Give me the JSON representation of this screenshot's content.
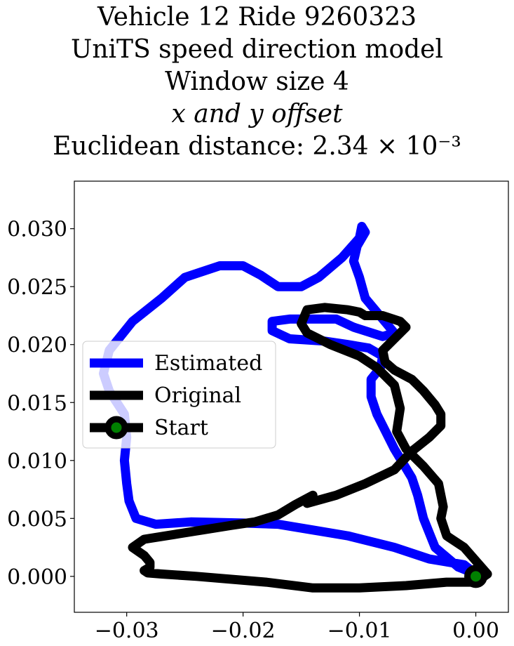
{
  "chart_data": {
    "type": "line",
    "title_lines": [
      "Vehicle 12 Ride 9260323",
      "UniTS speed direction model",
      "Window size 4",
      "x and y offset",
      "Euclidean distance: 2.34 × 10⁻³"
    ],
    "xlim": [
      -0.0345,
      0.0028
    ],
    "ylim": [
      -0.0031,
      0.0341
    ],
    "x_ticks": [
      -0.03,
      -0.02,
      -0.01,
      0.0
    ],
    "x_tick_labels": [
      "−0.03",
      "−0.02",
      "−0.01",
      "0.00"
    ],
    "y_ticks": [
      0.0,
      0.005,
      0.01,
      0.015,
      0.02,
      0.025,
      0.03
    ],
    "y_tick_labels": [
      "0.000",
      "0.005",
      "0.010",
      "0.015",
      "0.020",
      "0.025",
      "0.030"
    ],
    "grid": false,
    "legend_position": "center-left",
    "series": [
      {
        "name": "Estimated",
        "color": "#0000ff",
        "x": [
          0.0,
          -0.0015,
          -0.0035,
          -0.0045,
          -0.005,
          -0.0055,
          -0.007,
          -0.0085,
          -0.009,
          -0.009,
          -0.0082,
          -0.008,
          -0.0092,
          -0.011,
          -0.013,
          -0.016,
          -0.0175,
          -0.0175,
          -0.016,
          -0.014,
          -0.012,
          -0.0105,
          -0.008,
          -0.007,
          -0.008,
          -0.0095,
          -0.01,
          -0.0105,
          -0.0102,
          -0.0095,
          -0.0098,
          -0.01,
          -0.0115,
          -0.0135,
          -0.015,
          -0.017,
          -0.0185,
          -0.02,
          -0.022,
          -0.025,
          -0.027,
          -0.0295,
          -0.0315,
          -0.032,
          -0.0315,
          -0.0302,
          -0.03,
          -0.0302,
          -0.03,
          -0.0298,
          -0.0292,
          -0.0275,
          -0.0245,
          -0.02,
          -0.017,
          -0.014,
          -0.011,
          -0.007,
          -0.004,
          -0.001,
          0.0
        ],
        "y": [
          0.0002,
          0.0008,
          0.0025,
          0.005,
          0.007,
          0.0085,
          0.011,
          0.014,
          0.0155,
          0.017,
          0.018,
          0.019,
          0.0197,
          0.02,
          0.0203,
          0.0205,
          0.0212,
          0.022,
          0.0222,
          0.0222,
          0.0222,
          0.0215,
          0.0207,
          0.021,
          0.0222,
          0.024,
          0.0258,
          0.0272,
          0.0285,
          0.0297,
          0.0302,
          0.0292,
          0.0275,
          0.0258,
          0.025,
          0.025,
          0.026,
          0.0268,
          0.0268,
          0.0258,
          0.024,
          0.022,
          0.0195,
          0.0175,
          0.016,
          0.014,
          0.012,
          0.01,
          0.008,
          0.0065,
          0.005,
          0.0045,
          0.0047,
          0.0046,
          0.0045,
          0.004,
          0.0035,
          0.0025,
          0.0015,
          0.001,
          0.0002
        ]
      },
      {
        "name": "Original",
        "color": "#000000",
        "x": [
          0.0,
          0.001,
          0.0003,
          -0.001,
          -0.0025,
          -0.003,
          -0.0028,
          -0.0032,
          -0.0045,
          -0.006,
          -0.0068,
          -0.0065,
          -0.007,
          -0.0085,
          -0.01,
          -0.0125,
          -0.0145,
          -0.015,
          -0.0145,
          -0.013,
          -0.011,
          -0.01,
          -0.0095,
          -0.008,
          -0.0065,
          -0.006,
          -0.007,
          -0.008,
          -0.0078,
          -0.007,
          -0.0055,
          -0.0045,
          -0.0035,
          -0.003,
          -0.003,
          -0.004,
          -0.0055,
          -0.007,
          -0.0095,
          -0.012,
          -0.0145,
          -0.014,
          -0.0155,
          -0.017,
          -0.019,
          -0.021,
          -0.0235,
          -0.026,
          -0.0285,
          -0.0295,
          -0.0285,
          -0.028,
          -0.028,
          -0.0285,
          -0.0282,
          -0.027,
          -0.024,
          -0.018,
          -0.014,
          -0.01,
          -0.006,
          -0.0025,
          0.0
        ],
        "y": [
          -0.0005,
          0.0002,
          0.001,
          0.0025,
          0.0035,
          0.005,
          0.006,
          0.008,
          0.0095,
          0.011,
          0.0125,
          0.0145,
          0.0165,
          0.018,
          0.019,
          0.02,
          0.021,
          0.0218,
          0.023,
          0.0232,
          0.023,
          0.0228,
          0.0225,
          0.0225,
          0.022,
          0.0215,
          0.0205,
          0.0195,
          0.0185,
          0.0178,
          0.017,
          0.016,
          0.0148,
          0.014,
          0.013,
          0.012,
          0.0108,
          0.0092,
          0.008,
          0.007,
          0.0063,
          0.007,
          0.0062,
          0.0053,
          0.0047,
          0.0044,
          0.004,
          0.0036,
          0.0032,
          0.0025,
          0.0018,
          0.0012,
          0.0008,
          0.0005,
          0.0003,
          0.0002,
          0.0,
          -0.0005,
          -0.001,
          -0.001,
          -0.0008,
          -0.0005,
          -0.0005
        ]
      }
    ],
    "start_point": {
      "name": "Start",
      "x": 0.0,
      "y": 0.0,
      "color": "#008000",
      "edge_color": "#000000"
    }
  }
}
